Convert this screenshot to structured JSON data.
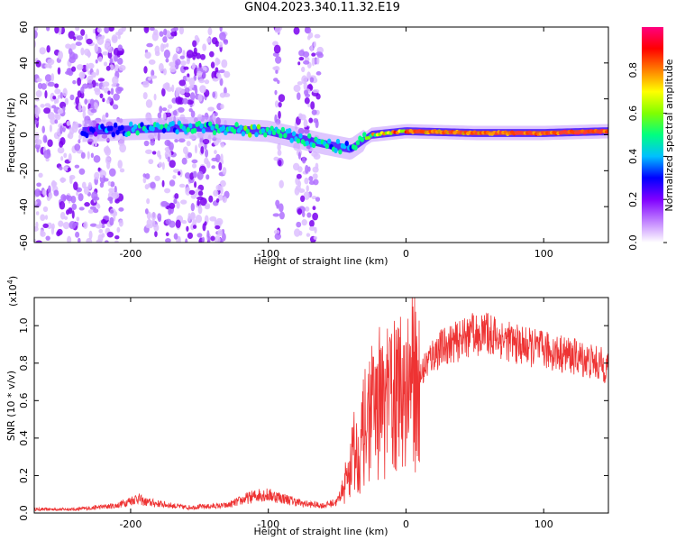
{
  "title": "GN04.2023.340.11.32.E19",
  "chart_data": [
    {
      "type": "heatmap",
      "xlabel": "Height of straight line (km)",
      "ylabel": "Frequency (Hz)",
      "xlim": [
        -270,
        147
      ],
      "ylim": [
        -60,
        60
      ],
      "xticks": [
        -200,
        -100,
        0,
        100
      ],
      "yticks": [
        -60,
        -40,
        -20,
        0,
        20,
        40,
        60
      ],
      "colorbar": {
        "label": "Normalized spectral amplitude",
        "range": [
          0,
          1
        ],
        "ticks": [
          "0.0",
          "0.2",
          "0.4",
          "0.6",
          "0.8"
        ],
        "colors": [
          "#ffffff",
          "#c080ff",
          "#8000ff",
          "#0000ff",
          "#00c0ff",
          "#00ff80",
          "#80ff00",
          "#ffff00",
          "#ff8000",
          "#ff0000",
          "#ff0080"
        ]
      },
      "ridge": [
        {
          "x": -235,
          "freq": 2,
          "amp": 0.25
        },
        {
          "x": -200,
          "freq": 3,
          "amp": 0.4
        },
        {
          "x": -150,
          "freq": 4,
          "amp": 0.45
        },
        {
          "x": -100,
          "freq": 2,
          "amp": 0.5
        },
        {
          "x": -60,
          "freq": -5,
          "amp": 0.45
        },
        {
          "x": -40,
          "freq": -8,
          "amp": 0.4
        },
        {
          "x": -25,
          "freq": 0,
          "amp": 0.7
        },
        {
          "x": 0,
          "freq": 2,
          "amp": 0.85
        },
        {
          "x": 50,
          "freq": 1,
          "amp": 0.9
        },
        {
          "x": 100,
          "freq": 1,
          "amp": 0.95
        },
        {
          "x": 147,
          "freq": 2,
          "amp": 1.0
        }
      ]
    },
    {
      "type": "line",
      "xlabel": "Height of straight line (km)",
      "ylabel": "SNR (10 * v/v)",
      "yscale_label": "(x10",
      "yscale_exp": "4",
      "yscale_close": ")",
      "xlim": [
        -270,
        147
      ],
      "ylim": [
        0,
        1.15
      ],
      "xticks": [
        -200,
        -100,
        0,
        100
      ],
      "yticks": [
        "0.0",
        "0.2",
        "0.4",
        "0.6",
        "0.8",
        "1.0"
      ],
      "color": "#ee3333",
      "series": [
        {
          "x": [
            -270,
            -240,
            -210,
            -195,
            -190,
            -180,
            -160,
            -130,
            -115,
            -105,
            -95,
            -85,
            -75,
            -60,
            -50,
            -42,
            -38,
            -35,
            -30,
            -25,
            -22,
            -20,
            -15,
            -10,
            -5,
            0,
            5,
            10,
            15,
            20,
            30,
            40,
            50,
            60,
            70,
            80,
            100,
            120,
            147
          ],
          "values": [
            0.02,
            0.02,
            0.04,
            0.08,
            0.06,
            0.05,
            0.03,
            0.04,
            0.08,
            0.1,
            0.09,
            0.07,
            0.05,
            0.04,
            0.06,
            0.2,
            0.35,
            0.3,
            0.45,
            0.55,
            0.5,
            0.6,
            0.55,
            0.65,
            0.6,
            0.7,
            0.7,
            0.72,
            0.8,
            0.85,
            0.9,
            0.92,
            0.95,
            0.96,
            0.93,
            0.9,
            0.87,
            0.84,
            0.78
          ]
        }
      ]
    }
  ]
}
